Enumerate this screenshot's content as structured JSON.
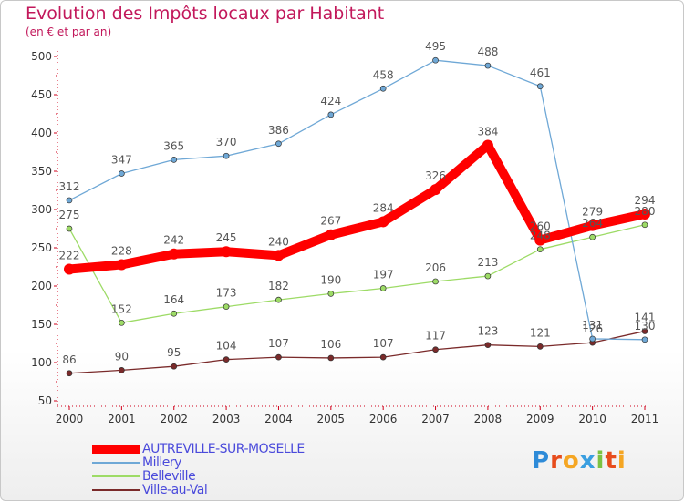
{
  "title": "Evolution des Impôts locaux par Habitant",
  "subtitle": "(en € et par an)",
  "logo": {
    "text": "Proxiti",
    "letters": [
      {
        "ch": "P",
        "color": "#2e8bd8"
      },
      {
        "ch": "r",
        "color": "#e74c1c"
      },
      {
        "ch": "o",
        "color": "#f5a623"
      },
      {
        "ch": "x",
        "color": "#3a9fe0"
      },
      {
        "ch": "i",
        "color": "#7cc242"
      },
      {
        "ch": "t",
        "color": "#e74c1c"
      },
      {
        "ch": "i",
        "color": "#f5a623"
      }
    ]
  },
  "chart_data": {
    "type": "line",
    "title": "Evolution des Impôts locaux par Habitant",
    "subtitle": "(en € et par an)",
    "xlabel": "",
    "ylabel": "",
    "x": [
      "2000",
      "2001",
      "2002",
      "2003",
      "2004",
      "2005",
      "2006",
      "2007",
      "2008",
      "2009",
      "2010",
      "2011"
    ],
    "ylim": [
      50,
      500
    ],
    "yticks": [
      50,
      100,
      150,
      200,
      250,
      300,
      350,
      400,
      450,
      500
    ],
    "grid": false,
    "legend_position": "bottom-left",
    "series": [
      {
        "name": "AUTREVILLE-SUR-MOSELLE",
        "color": "#ff0000",
        "values": [
          222,
          228,
          242,
          245,
          240,
          267,
          284,
          326,
          384,
          260,
          279,
          294
        ],
        "labels": [
          "222",
          "228",
          "242",
          "245",
          "240",
          "267",
          "284",
          "326",
          "384",
          "260",
          "279",
          "294"
        ]
      },
      {
        "name": "Millery",
        "color": "#6fa8d6",
        "values": [
          312,
          347,
          365,
          370,
          386,
          424,
          458,
          495,
          488,
          461,
          131,
          130
        ],
        "labels": [
          "312",
          "347",
          "365",
          "370",
          "386",
          "424",
          "458",
          "495",
          "488",
          "461",
          "131",
          "130"
        ]
      },
      {
        "name": "Belleville",
        "color": "#9ddb66",
        "values": [
          275,
          152,
          164,
          173,
          182,
          190,
          197,
          206,
          213,
          248,
          264,
          280
        ],
        "labels": [
          "275",
          "152",
          "164",
          "173",
          "182",
          "190",
          "197",
          "206",
          "213",
          "248",
          "264",
          "280"
        ]
      },
      {
        "name": "Ville-au-Val",
        "color": "#7a2a2a",
        "values": [
          86,
          90,
          95,
          104,
          107,
          106,
          107,
          117,
          123,
          121,
          126,
          141
        ],
        "labels": [
          "86",
          "90",
          "95",
          "104",
          "107",
          "106",
          "107",
          "117",
          "123",
          "121",
          "126",
          "141"
        ]
      }
    ]
  }
}
